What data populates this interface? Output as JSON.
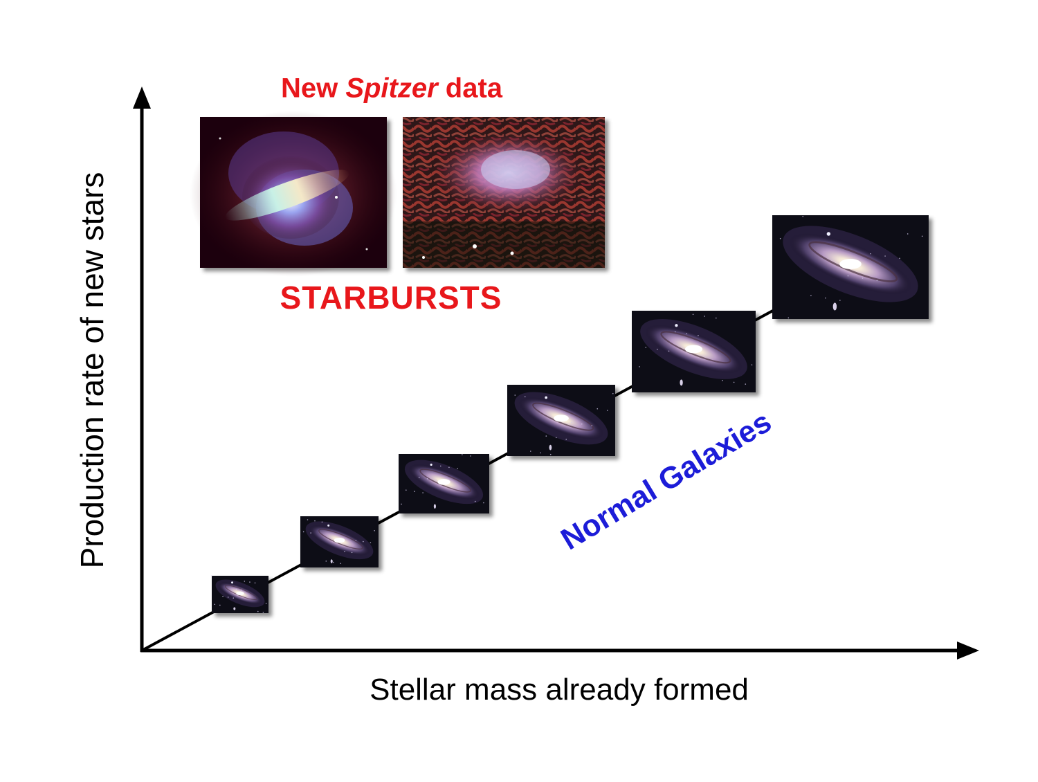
{
  "labels": {
    "y_axis": "Production rate of new stars",
    "x_axis": "Stellar mass already formed",
    "spitzer_prefix": "New ",
    "spitzer_name": "Spitzer",
    "spitzer_suffix": " data",
    "starbursts": "STARBURSTS",
    "normal_galaxies": "Normal Galaxies"
  },
  "colors": {
    "starburst_text": "#e8171b",
    "normal_text": "#1c1cd8",
    "axis": "#000000"
  },
  "images": {
    "starburst": [
      "starburst-galaxy-image",
      "starburst-nebula-image"
    ],
    "normal_galaxies": [
      "spiral-galaxy-image",
      "spiral-galaxy-image",
      "spiral-galaxy-image",
      "spiral-galaxy-image",
      "spiral-galaxy-image",
      "spiral-galaxy-image"
    ]
  }
}
